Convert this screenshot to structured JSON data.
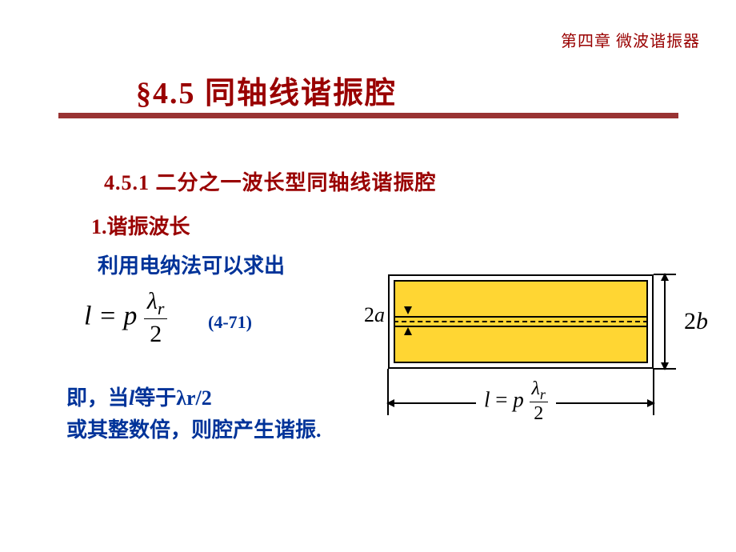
{
  "header": {
    "chapter": "第四章  微波谐振器",
    "section_title": "§4.5 同轴线谐振腔",
    "subsection": "4.5.1 二分之一波长型同轴线谐振腔"
  },
  "item": {
    "number_title": "1.谐振波长",
    "method": "利用电纳法可以求出"
  },
  "equation": {
    "lhs": "l",
    "eq": " = ",
    "p": "p",
    "lambda": "λ",
    "sub_r": "r",
    "den": "2",
    "label": "(4-71)"
  },
  "conclusion": {
    "line1_a": "即，当",
    "line1_l": "l",
    "line1_b": "等于λr/2",
    "line2": "或其整数倍，则腔产生谐振."
  },
  "diagram": {
    "label_2a_num": "2",
    "label_2a_var": "a",
    "label_2b_num": "2",
    "label_2b_var": "b",
    "formula_l": "l",
    "formula_eq": " = ",
    "formula_p": "p",
    "formula_lambda": "λ",
    "formula_sub": "r",
    "formula_den": "2",
    "colors": {
      "fill": "#ffd633",
      "border": "#000000",
      "text_heading": "#990000",
      "text_body": "#003399",
      "underline": "#993333"
    }
  }
}
